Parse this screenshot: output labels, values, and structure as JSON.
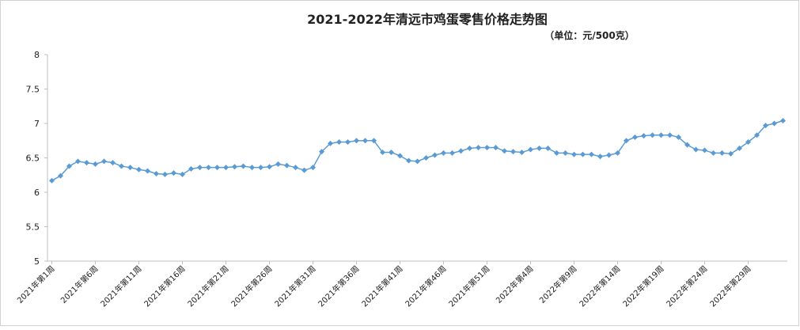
{
  "chart_data": {
    "type": "line",
    "title": "2021-2022年清远市鸡蛋零售价格走势图",
    "subtitle": "（单位：元/500克）",
    "color": "#5b9bd5",
    "marker": "diamond",
    "categories": [
      "2021年第1周",
      null,
      null,
      null,
      null,
      "2021年第6周",
      null,
      null,
      null,
      null,
      "2021年第11周",
      null,
      null,
      null,
      null,
      "2021年第16周",
      null,
      null,
      null,
      null,
      "2021年第21周",
      null,
      null,
      null,
      null,
      "2021年第26周",
      null,
      null,
      null,
      null,
      "2021年第31周",
      null,
      null,
      null,
      null,
      "2021年第36周",
      null,
      null,
      null,
      null,
      "2021年第41周",
      null,
      null,
      null,
      null,
      "2021年第46周",
      null,
      null,
      null,
      null,
      "2021年第51周",
      null,
      null,
      null,
      null,
      "2022年第4周",
      null,
      null,
      null,
      null,
      "2022年第9周",
      null,
      null,
      null,
      null,
      "2022年第14周",
      null,
      null,
      null,
      null,
      "2022年第19周",
      null,
      null,
      null,
      null,
      "2022年第24周",
      null,
      null,
      null,
      null,
      "2022年第29周",
      null,
      null,
      null,
      null
    ],
    "values": [
      6.17,
      6.24,
      6.38,
      6.45,
      6.43,
      6.41,
      6.45,
      6.43,
      6.38,
      6.36,
      6.33,
      6.31,
      6.27,
      6.26,
      6.28,
      6.26,
      6.34,
      6.36,
      6.36,
      6.36,
      6.36,
      6.37,
      6.38,
      6.36,
      6.36,
      6.37,
      6.41,
      6.39,
      6.36,
      6.32,
      6.36,
      6.59,
      6.71,
      6.73,
      6.73,
      6.75,
      6.75,
      6.75,
      6.58,
      6.58,
      6.53,
      6.46,
      6.45,
      6.5,
      6.54,
      6.57,
      6.57,
      6.6,
      6.64,
      6.65,
      6.65,
      6.65,
      6.6,
      6.59,
      6.58,
      6.62,
      6.64,
      6.64,
      6.57,
      6.57,
      6.55,
      6.55,
      6.55,
      6.52,
      6.54,
      6.57,
      6.75,
      6.8,
      6.82,
      6.83,
      6.83,
      6.83,
      6.8,
      6.69,
      6.62,
      6.61,
      6.57,
      6.57,
      6.56,
      6.64,
      6.73,
      6.83,
      6.97,
      7.0,
      7.04
    ],
    "ylim": [
      5,
      8
    ],
    "yticks": [
      5,
      5.5,
      6,
      6.5,
      7,
      7.5,
      8
    ],
    "grid": false
  }
}
